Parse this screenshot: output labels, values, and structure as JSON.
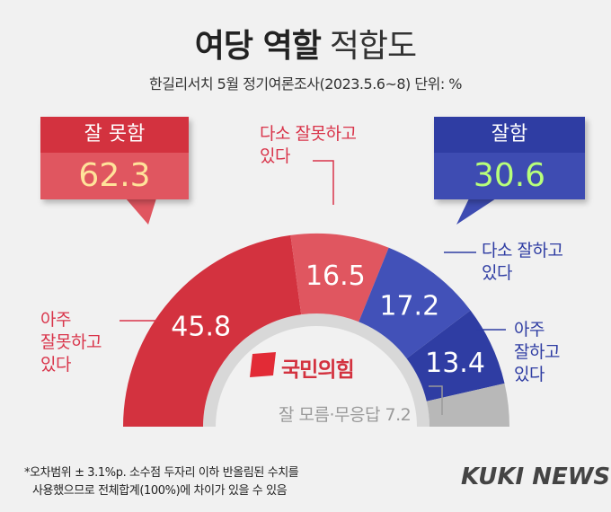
{
  "title_bold": "여당 역할",
  "title_light": "적합도",
  "subtitle": "한길리서치 5월 정기여론조사(2023.5.6~8) 단위: %",
  "summary_bad": {
    "label": "잘 못함",
    "value": "62.3"
  },
  "summary_good": {
    "label": "잘함",
    "value": "30.6"
  },
  "chart_data": {
    "type": "pie",
    "variant": "semicircle-donut",
    "title": "여당 역할 적합도",
    "subtitle": "한길리서치 5월 정기여론조사(2023.5.6~8) 단위: %",
    "unit": "%",
    "categories": [
      "아주 잘못하고 있다",
      "다소 잘못하고 있다",
      "다소 잘하고 있다",
      "아주 잘하고 있다",
      "잘 모름·무응답"
    ],
    "values": [
      45.8,
      16.5,
      17.2,
      13.4,
      7.2
    ],
    "colors": [
      "#d3323f",
      "#e05660",
      "#4251b8",
      "#2f3da3",
      "#b8b8b8"
    ],
    "groups": [
      {
        "label": "잘 못함",
        "value": 62.3
      },
      {
        "label": "잘함",
        "value": 30.6
      }
    ]
  },
  "labels": {
    "very_bad": [
      "아주",
      "잘못하고",
      "있다"
    ],
    "some_bad": [
      "다소 잘못하고",
      "있다"
    ],
    "some_good": [
      "다소 잘하고",
      "있다"
    ],
    "very_good": [
      "아주",
      "잘하고",
      "있다"
    ],
    "dunno": "잘 모름·무응답 7.2"
  },
  "logo_text": "국민의힘",
  "footnote": [
    "*오차범위 ± 3.1%p. 소수점 두자리 이하 반올림된 수치를",
    "사용했으므로 전체합계(100%)에 차이가 있을 수 있음"
  ],
  "brand": "KUKI NEWS"
}
